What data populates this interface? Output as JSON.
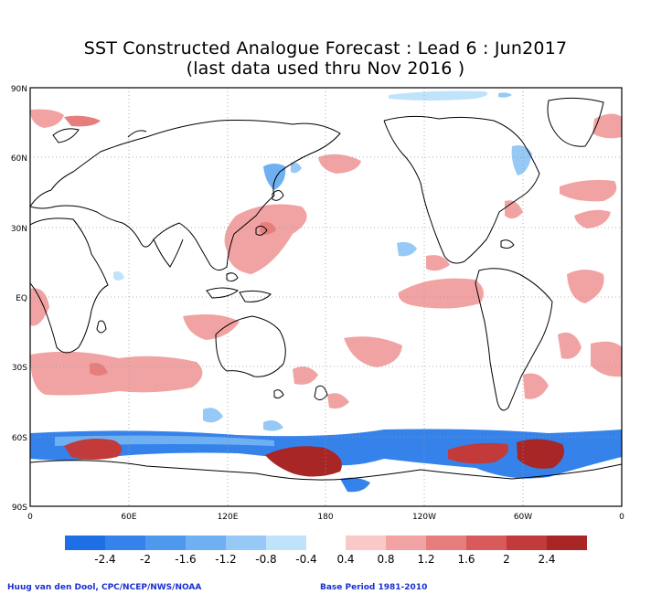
{
  "title_line1": "SST Constructed Analogue Forecast : Lead 6 : Jun2017",
  "title_line2": "(last data used thru Nov 2016 )",
  "lat_labels": [
    "90N",
    "60N",
    "30N",
    "EQ",
    "30S",
    "60S",
    "90S"
  ],
  "lon_labels": [
    "0",
    "60E",
    "120E",
    "180",
    "120W",
    "60W",
    "0"
  ],
  "colorbar": {
    "negative_labels": [
      "-2.4",
      "-2",
      "-1.6",
      "-1.2",
      "-0.8",
      "-0.4"
    ],
    "positive_labels": [
      "0.4",
      "0.8",
      "1.2",
      "1.6",
      "2",
      "2.4"
    ],
    "negative_colors": [
      "#1e6fe6",
      "#3583ea",
      "#4e98ee",
      "#6fb0f2",
      "#96c9f6",
      "#bfe3fb"
    ],
    "positive_colors": [
      "#fbc8c8",
      "#f1a3a3",
      "#e77e7e",
      "#d85a5a",
      "#c23a3a",
      "#a82626"
    ]
  },
  "credit_left": "Huug van den Dool, CPC/NCEP/NWS/NOAA",
  "credit_right": "Base Period 1981-2010"
}
